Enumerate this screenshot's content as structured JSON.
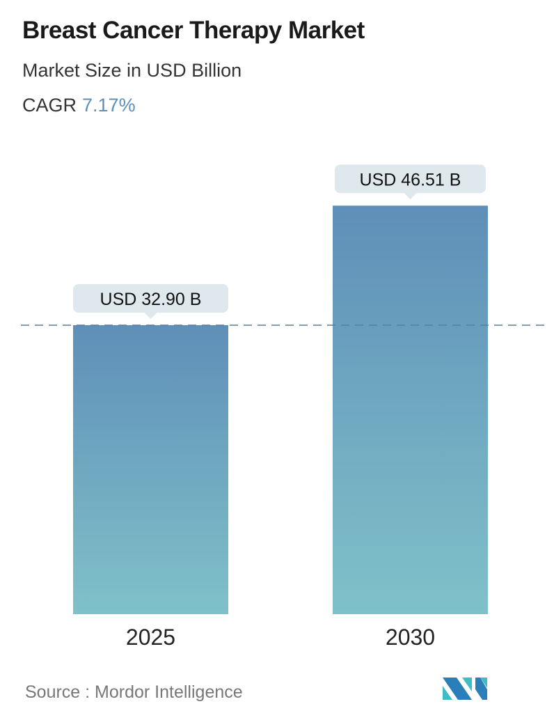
{
  "header": {
    "title": "Breast Cancer Therapy Market",
    "subtitle": "Market Size in USD Billion",
    "cagr_label": "CAGR",
    "cagr_value": "7.17%"
  },
  "chart_data": {
    "type": "bar",
    "categories": [
      "2025",
      "2030"
    ],
    "values": [
      32.9,
      46.51
    ],
    "data_labels": [
      "USD 32.90 B",
      "USD 46.51 B"
    ],
    "reference_line": {
      "value": 32.9,
      "style": "dashed"
    },
    "colors": {
      "bar_top": "#5f8fb8",
      "bar_bottom": "#7fc1c9",
      "label_bg": "#dfe8ec",
      "dash": "#5a7f9c"
    },
    "grid": false
  },
  "footer": {
    "source": "Source :  Mordor Intelligence",
    "logo_text": "Mordor Intelligence"
  }
}
